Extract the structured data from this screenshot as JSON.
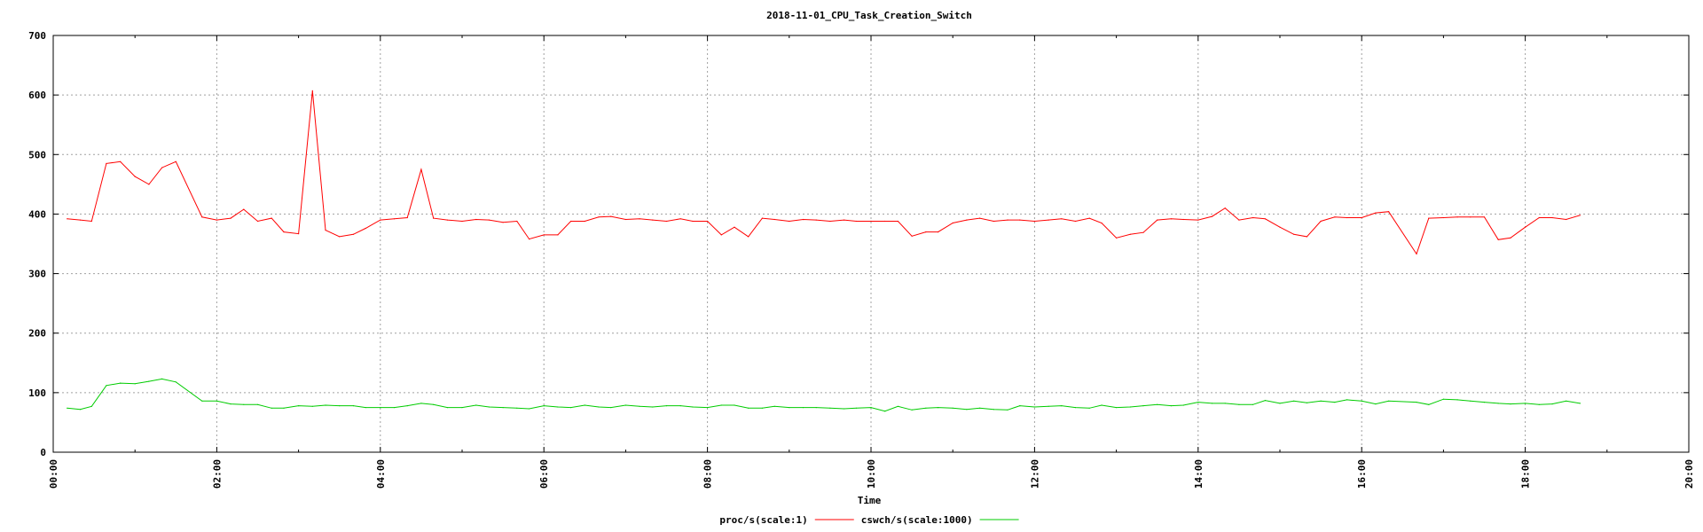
{
  "chart_data": {
    "type": "line",
    "title": "2018-11-01_CPU_Task_Creation_Switch",
    "xlabel": "Time",
    "ylabel": "",
    "xlim": [
      0,
      20
    ],
    "ylim": [
      0,
      700
    ],
    "grid": true,
    "legend_position": "bottom-center",
    "x_ticks": [
      "00:00",
      "02:00",
      "04:00",
      "06:00",
      "08:00",
      "10:00",
      "12:00",
      "14:00",
      "16:00",
      "18:00",
      "20:00"
    ],
    "y_ticks": [
      "0",
      "100",
      "200",
      "300",
      "400",
      "500",
      "600",
      "700"
    ],
    "x": [
      0.17,
      0.33,
      0.47,
      0.65,
      0.82,
      1.0,
      1.17,
      1.33,
      1.5,
      1.82,
      2.0,
      2.17,
      2.33,
      2.5,
      2.67,
      2.82,
      3.0,
      3.17,
      3.33,
      3.5,
      3.67,
      3.82,
      4.0,
      4.17,
      4.33,
      4.5,
      4.65,
      4.82,
      5.0,
      5.17,
      5.33,
      5.5,
      5.67,
      5.82,
      6.0,
      6.17,
      6.33,
      6.5,
      6.67,
      6.82,
      7.0,
      7.17,
      7.33,
      7.5,
      7.67,
      7.82,
      8.0,
      8.17,
      8.33,
      8.5,
      8.67,
      8.82,
      9.0,
      9.17,
      9.33,
      9.5,
      9.67,
      9.82,
      10.0,
      10.17,
      10.33,
      10.5,
      10.67,
      10.82,
      11.0,
      11.17,
      11.33,
      11.5,
      11.67,
      11.82,
      12.0,
      12.17,
      12.33,
      12.5,
      12.67,
      12.82,
      13.0,
      13.17,
      13.33,
      13.5,
      13.67,
      13.82,
      14.0,
      14.17,
      14.33,
      14.5,
      14.67,
      14.82,
      15.0,
      15.17,
      15.33,
      15.5,
      15.67,
      15.82,
      16.0,
      16.17,
      16.33,
      16.67,
      16.82,
      17.0,
      17.17,
      17.33,
      17.5,
      17.67,
      17.82,
      18.0,
      18.17,
      18.33,
      18.5,
      18.67
    ],
    "series": [
      {
        "name": "proc/s(scale:1)",
        "color": "#ff0000",
        "values": [
          392,
          390,
          388,
          485,
          488,
          463,
          450,
          478,
          488,
          395,
          390,
          393,
          408,
          388,
          393,
          370,
          367,
          607,
          373,
          362,
          366,
          376,
          390,
          392,
          394,
          475,
          393,
          390,
          388,
          391,
          390,
          386,
          388,
          358,
          365,
          365,
          388,
          388,
          395,
          396,
          391,
          392,
          390,
          388,
          392,
          388,
          388,
          365,
          378,
          362,
          393,
          391,
          388,
          391,
          390,
          388,
          390,
          388,
          388,
          388,
          388,
          363,
          370,
          370,
          385,
          390,
          393,
          388,
          390,
          390,
          388,
          390,
          392,
          388,
          393,
          385,
          360,
          366,
          369,
          390,
          392,
          391,
          390,
          396,
          410,
          390,
          394,
          392,
          378,
          366,
          362,
          388,
          395,
          394,
          394,
          402,
          404,
          333,
          393,
          394,
          395,
          395,
          395,
          357,
          360,
          378,
          394,
          394,
          391,
          398
        ]
      },
      {
        "name": "cswch/s(scale:1000)",
        "color": "#00cc00",
        "values": [
          74,
          72,
          77,
          112,
          116,
          115,
          119,
          123,
          118,
          86,
          86,
          81,
          80,
          80,
          74,
          74,
          78,
          77,
          79,
          78,
          78,
          75,
          75,
          75,
          78,
          82,
          80,
          75,
          75,
          79,
          76,
          75,
          74,
          73,
          78,
          76,
          75,
          79,
          76,
          75,
          79,
          77,
          76,
          78,
          78,
          76,
          75,
          79,
          79,
          74,
          74,
          77,
          75,
          75,
          75,
          74,
          73,
          74,
          75,
          69,
          77,
          71,
          74,
          75,
          74,
          72,
          74,
          72,
          71,
          78,
          76,
          77,
          78,
          75,
          74,
          79,
          75,
          76,
          78,
          80,
          78,
          79,
          84,
          82,
          82,
          80,
          80,
          87,
          82,
          86,
          83,
          86,
          84,
          88,
          86,
          81,
          86,
          84,
          80,
          89,
          88,
          86,
          84,
          82,
          81,
          82,
          80,
          81,
          86,
          82
        ]
      }
    ]
  }
}
